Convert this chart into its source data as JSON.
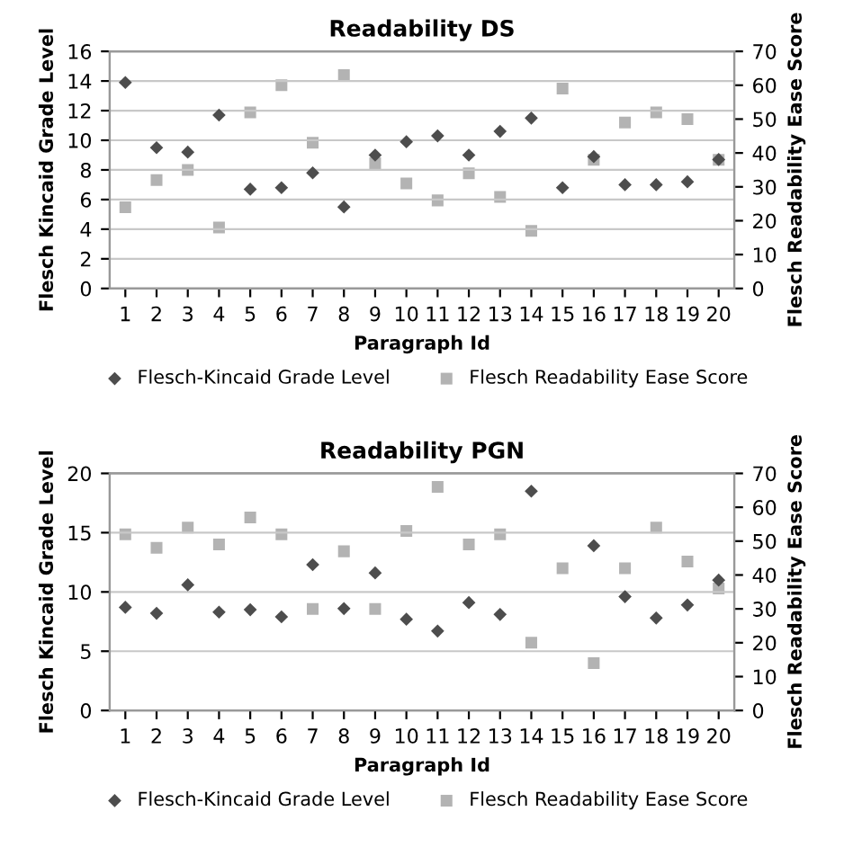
{
  "chart_data": [
    {
      "type": "scatter",
      "title": "Readability DS",
      "xlabel": "Paragraph Id",
      "ylabel": "Flesch Kincaid Grade Level",
      "y2label": "Flesch Readability Ease Score",
      "categories": [
        "1",
        "2",
        "3",
        "4",
        "5",
        "6",
        "7",
        "8",
        "9",
        "10",
        "11",
        "12",
        "13",
        "14",
        "15",
        "16",
        "17",
        "18",
        "19",
        "20"
      ],
      "series": [
        {
          "name": "Flesch-Kincaid Grade Level",
          "color": "#4d4d4d",
          "marker": "diamond",
          "values": [
            13.9,
            9.5,
            9.2,
            11.7,
            6.7,
            6.8,
            7.8,
            5.5,
            9.0,
            9.9,
            10.3,
            9.0,
            10.6,
            11.5,
            6.8,
            8.9,
            7.0,
            7.0,
            7.2,
            8.7
          ]
        },
        {
          "name": "Flesch Readability Ease Score",
          "color": "#b3b3b3",
          "marker": "square",
          "axis": "y2",
          "values": [
            24,
            32,
            35,
            18,
            52,
            60,
            43,
            63,
            37,
            31,
            26,
            34,
            27,
            17,
            59,
            38,
            49,
            52,
            50,
            38
          ]
        }
      ],
      "ylim": [
        0,
        16
      ],
      "yticks": [
        0,
        2,
        4,
        6,
        8,
        10,
        12,
        14,
        16
      ],
      "y2lim": [
        0,
        70
      ],
      "y2ticks": [
        0,
        10,
        20,
        30,
        40,
        50,
        60,
        70
      ],
      "grid": "y",
      "legend": "bottom"
    },
    {
      "type": "scatter",
      "title": "Readability PGN",
      "xlabel": "Paragraph Id",
      "ylabel": "Flesch Kincaid Grade Level",
      "y2label": "Flesch Readability Ease Score",
      "categories": [
        "1",
        "2",
        "3",
        "4",
        "5",
        "6",
        "7",
        "8",
        "9",
        "10",
        "11",
        "12",
        "13",
        "14",
        "15",
        "16",
        "17",
        "18",
        "19",
        "20"
      ],
      "series": [
        {
          "name": "Flesch-Kincaid Grade Level",
          "color": "#4d4d4d",
          "marker": "diamond",
          "values": [
            8.7,
            8.2,
            10.6,
            8.3,
            8.5,
            7.9,
            12.3,
            8.6,
            11.6,
            7.7,
            6.7,
            9.1,
            8.1,
            18.5,
            null,
            13.9,
            9.6,
            7.8,
            8.9,
            11.0
          ]
        },
        {
          "name": "Flesch Readability Ease Score",
          "color": "#b3b3b3",
          "marker": "square",
          "axis": "y2",
          "values": [
            52,
            48,
            54,
            49,
            57,
            52,
            30,
            47,
            30,
            53,
            66,
            49,
            52,
            20,
            42,
            14,
            42,
            54,
            44,
            36
          ]
        }
      ],
      "ylim": [
        0,
        20
      ],
      "yticks": [
        0,
        5,
        10,
        15,
        20
      ],
      "y2lim": [
        0,
        70
      ],
      "y2ticks": [
        0,
        10,
        20,
        30,
        40,
        50,
        60,
        70
      ],
      "grid": "y",
      "legend": "bottom"
    }
  ]
}
